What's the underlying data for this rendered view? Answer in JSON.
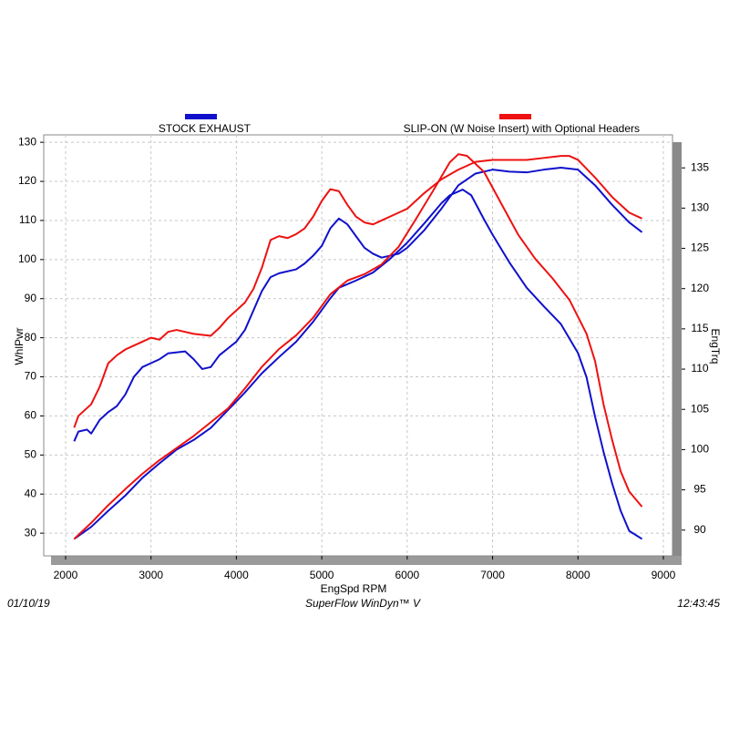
{
  "chart_data": {
    "type": "line",
    "ylabel": "WhlPwr",
    "y2label": "EngTrq",
    "xlabel": "EngSpd  RPM",
    "footer_left": "01/10/19",
    "footer_center": "SuperFlow WinDyn™ V",
    "footer_right": "12:43:45",
    "xlim": [
      1744,
      9107
    ],
    "xticks": [
      2000,
      3000,
      4000,
      5000,
      6000,
      7000,
      8000,
      9000
    ],
    "ylim": [
      24.2,
      131.9
    ],
    "yticks": [
      30,
      40,
      50,
      60,
      70,
      80,
      90,
      100,
      110,
      120,
      130
    ],
    "y2lim": [
      86.8,
      139.1
    ],
    "y2ticks": [
      90,
      95,
      100,
      105,
      110,
      115,
      120,
      125,
      130,
      135
    ],
    "grid": true,
    "series": [
      {
        "name": "STOCK EXHAUST",
        "color": "#1010cc",
        "power": {
          "x": [
            2100,
            2150,
            2250,
            2300,
            2400,
            2500,
            2600,
            2700,
            2800,
            2900,
            3000,
            3100,
            3200,
            3400,
            3500,
            3600,
            3700,
            3800,
            4000,
            4100,
            4200,
            4300,
            4400,
            4500,
            4700,
            4800,
            4900,
            5000,
            5100,
            5200,
            5300,
            5400,
            5500,
            5600,
            5700,
            5800,
            5900,
            6000,
            6200,
            6400,
            6600,
            6800,
            7000,
            7200,
            7400,
            7600,
            7800,
            8000,
            8200,
            8400,
            8600,
            8750
          ],
          "values": [
            53.5,
            56,
            56.5,
            55.5,
            59,
            61,
            62.5,
            65.5,
            70,
            72.5,
            73.5,
            74.5,
            76,
            76.5,
            74.5,
            72,
            72.5,
            75.5,
            79,
            82,
            87,
            92,
            95.5,
            96.5,
            97.5,
            99,
            101,
            103.5,
            108,
            110.5,
            109,
            106,
            103,
            101.5,
            100.5,
            101,
            101.5,
            103,
            107.5,
            113,
            119,
            122,
            123,
            122.5,
            122.3,
            123,
            123.5,
            123,
            119,
            114,
            109.5,
            107
          ]
        },
        "torque": {
          "axis": "y2",
          "x": [
            2100,
            2300,
            2500,
            2700,
            2900,
            3100,
            3300,
            3500,
            3700,
            3900,
            4100,
            4300,
            4500,
            4700,
            4900,
            5100,
            5200,
            5400,
            5600,
            5800,
            6000,
            6200,
            6400,
            6500,
            6650,
            6750,
            6900,
            7000,
            7200,
            7400,
            7600,
            7800,
            8000,
            8100,
            8200,
            8300,
            8400,
            8500,
            8600,
            8750
          ],
          "values": [
            88.9,
            90.4,
            92.4,
            94.3,
            96.5,
            98.3,
            100.0,
            101.2,
            102.7,
            104.9,
            107.1,
            109.5,
            111.5,
            113.4,
            115.9,
            118.8,
            120.1,
            121.0,
            122.0,
            123.7,
            125.7,
            128.1,
            130.6,
            131.6,
            132.3,
            131.6,
            128.6,
            126.7,
            123.2,
            120.1,
            117.8,
            115.6,
            112.0,
            109.0,
            104.1,
            99.7,
            95.8,
            92.4,
            89.9,
            88.9
          ]
        }
      },
      {
        "name": "SLIP-ON (W Noise Insert) with Optional Headers",
        "color": "#ee1111",
        "power": {
          "x": [
            2100,
            2150,
            2300,
            2400,
            2500,
            2600,
            2700,
            2800,
            2900,
            3000,
            3100,
            3200,
            3300,
            3500,
            3700,
            3800,
            3900,
            4000,
            4100,
            4200,
            4300,
            4400,
            4500,
            4600,
            4700,
            4800,
            4900,
            5000,
            5100,
            5200,
            5300,
            5400,
            5500,
            5600,
            5700,
            5800,
            5900,
            6000,
            6200,
            6400,
            6600,
            6800,
            7000,
            7200,
            7400,
            7600,
            7800,
            7900,
            8000,
            8200,
            8400,
            8600,
            8750
          ],
          "values": [
            57,
            60,
            63,
            67.5,
            73.5,
            75.5,
            77,
            78,
            79,
            80,
            79.5,
            81.5,
            82,
            81,
            80.5,
            82.5,
            85,
            87,
            89,
            92.5,
            98,
            105,
            106,
            105.5,
            106.5,
            108,
            111,
            115,
            118,
            117.5,
            114,
            111,
            109.5,
            109,
            110,
            111,
            112,
            113,
            117,
            120.5,
            123,
            125,
            125.5,
            125.5,
            125.5,
            126,
            126.5,
            126.5,
            125.5,
            121,
            116,
            112,
            110.5
          ]
        },
        "torque": {
          "axis": "y2",
          "x": [
            2100,
            2300,
            2500,
            2700,
            2900,
            3100,
            3300,
            3500,
            3700,
            3900,
            4100,
            4300,
            4500,
            4700,
            4900,
            5100,
            5300,
            5500,
            5700,
            5900,
            6100,
            6300,
            6500,
            6600,
            6700,
            6900,
            7100,
            7300,
            7500,
            7700,
            7900,
            8100,
            8200,
            8300,
            8400,
            8500,
            8600,
            8750
          ],
          "values": [
            88.9,
            90.9,
            93.1,
            95.1,
            97.0,
            98.7,
            100.2,
            101.7,
            103.4,
            105.1,
            107.6,
            110.3,
            112.5,
            114.2,
            116.4,
            119.3,
            121.0,
            121.8,
            123.0,
            125.2,
            128.6,
            132.1,
            135.7,
            136.7,
            136.5,
            134.5,
            130.6,
            126.7,
            123.7,
            121.3,
            118.6,
            114.4,
            111.0,
            105.6,
            101.2,
            97.3,
            94.8,
            92.9
          ]
        }
      }
    ]
  }
}
